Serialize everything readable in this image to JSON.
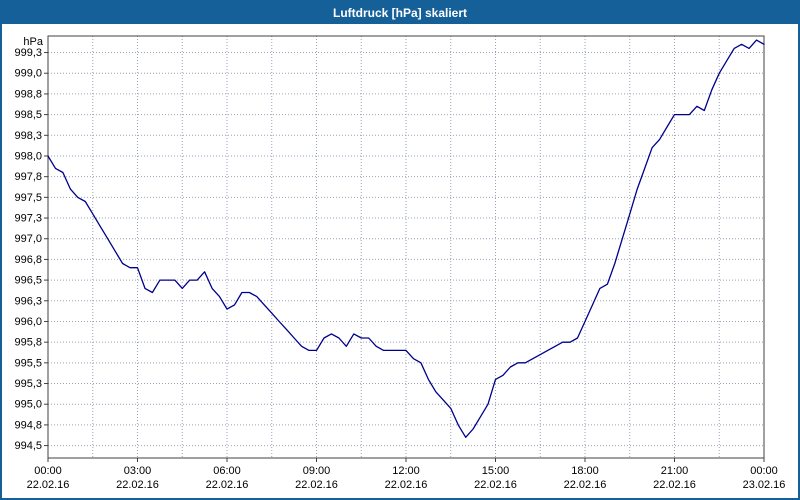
{
  "window": {
    "title": "Luftdruck [hPa] skaliert"
  },
  "colors": {
    "titlebar_bg": "#16609a",
    "window_border": "#16609a",
    "line": "#00008b",
    "grid": "#9aa2b8",
    "plot_border": "#404040",
    "tick": "#404040",
    "text": "#000000",
    "plot_bg": "#ffffff"
  },
  "chart_data": {
    "type": "line",
    "title": "Luftdruck [hPa] skaliert",
    "ylabel": "hPa",
    "xlabel": "",
    "grid": true,
    "legend": "none",
    "ylim": [
      994.35,
      999.45
    ],
    "xlim_hours": [
      0,
      24
    ],
    "series": [
      {
        "name": "Luftdruck",
        "x_hours": [
          0,
          0.25,
          0.5,
          0.75,
          1,
          1.25,
          1.5,
          1.75,
          2,
          2.25,
          2.5,
          2.75,
          3,
          3.25,
          3.5,
          3.75,
          4,
          4.25,
          4.5,
          4.75,
          5,
          5.25,
          5.5,
          5.75,
          6,
          6.25,
          6.5,
          6.75,
          7,
          7.25,
          7.5,
          7.75,
          8,
          8.25,
          8.5,
          8.75,
          9,
          9.25,
          9.5,
          9.75,
          10,
          10.25,
          10.5,
          10.75,
          11,
          11.25,
          11.5,
          11.75,
          12,
          12.25,
          12.5,
          12.75,
          13,
          13.25,
          13.5,
          13.75,
          14,
          14.25,
          14.5,
          14.75,
          15,
          15.25,
          15.5,
          15.75,
          16,
          16.25,
          16.5,
          16.75,
          17,
          17.25,
          17.5,
          17.75,
          18,
          18.25,
          18.5,
          18.75,
          19,
          19.25,
          19.5,
          19.75,
          20,
          20.25,
          20.5,
          20.75,
          21,
          21.25,
          21.5,
          21.75,
          22,
          22.25,
          22.5,
          22.75,
          23,
          23.25,
          23.5,
          23.75,
          24
        ],
        "values": [
          998.0,
          997.85,
          997.8,
          997.6,
          997.5,
          997.45,
          997.3,
          997.15,
          997.0,
          996.85,
          996.7,
          996.65,
          996.65,
          996.4,
          996.35,
          996.5,
          996.5,
          996.5,
          996.4,
          996.5,
          996.5,
          996.6,
          996.4,
          996.3,
          996.15,
          996.2,
          996.35,
          996.35,
          996.3,
          996.2,
          996.1,
          996.0,
          995.9,
          995.8,
          995.7,
          995.65,
          995.65,
          995.8,
          995.85,
          995.8,
          995.7,
          995.85,
          995.8,
          995.8,
          995.7,
          995.65,
          995.65,
          995.65,
          995.65,
          995.55,
          995.5,
          995.3,
          995.15,
          995.05,
          994.95,
          994.75,
          994.6,
          994.7,
          994.85,
          995.0,
          995.3,
          995.35,
          995.45,
          995.5,
          995.5,
          995.55,
          995.6,
          995.65,
          995.7,
          995.75,
          995.75,
          995.8,
          996.0,
          996.2,
          996.4,
          996.45,
          996.7,
          997.0,
          997.3,
          997.6,
          997.85,
          998.1,
          998.2,
          998.35,
          998.5,
          998.5,
          998.5,
          998.6,
          998.55,
          998.8,
          999.0,
          999.15,
          999.3,
          999.35,
          999.3,
          999.4,
          999.35
        ]
      }
    ],
    "y_ticks": {
      "values": [
        999.25,
        999.0,
        998.75,
        998.5,
        998.25,
        998.0,
        997.75,
        997.5,
        997.25,
        997.0,
        996.75,
        996.5,
        996.25,
        996.0,
        995.75,
        995.5,
        995.25,
        995.0,
        994.75,
        994.5
      ],
      "labels": [
        "999,3",
        "999,0",
        "998,8",
        "998,5",
        "998,3",
        "998,0",
        "997,8",
        "997,5",
        "997,3",
        "997,0",
        "996,8",
        "996,5",
        "996,3",
        "996,0",
        "995,8",
        "995,5",
        "995,3",
        "995,0",
        "994,8",
        "994,5"
      ]
    },
    "x_ticks": [
      {
        "hour": 0,
        "time": "00:00",
        "date": "22.02.16"
      },
      {
        "hour": 3,
        "time": "03:00",
        "date": "22.02.16"
      },
      {
        "hour": 6,
        "time": "06:00",
        "date": "22.02.16"
      },
      {
        "hour": 9,
        "time": "09:00",
        "date": "22.02.16"
      },
      {
        "hour": 12,
        "time": "12:00",
        "date": "22.02.16"
      },
      {
        "hour": 15,
        "time": "15:00",
        "date": "22.02.16"
      },
      {
        "hour": 18,
        "time": "18:00",
        "date": "22.02.16"
      },
      {
        "hour": 21,
        "time": "21:00",
        "date": "22.02.16"
      },
      {
        "hour": 24,
        "time": "00:00",
        "date": "23.02.16"
      }
    ],
    "minor_x_hours": [
      1.5,
      4.5,
      7.5,
      10.5,
      13.5,
      16.5,
      19.5,
      22.5
    ]
  }
}
